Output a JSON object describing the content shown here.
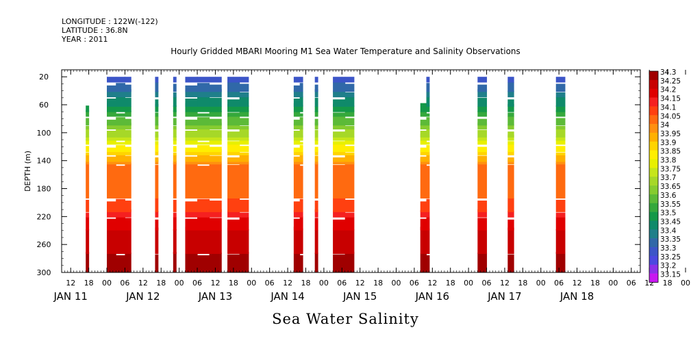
{
  "header": {
    "longitude": "LONGITUDE : 122W(-122)",
    "latitude": "LATITUDE : 36.8N",
    "year": "YEAR : 2011"
  },
  "chart_data": {
    "type": "heatmap",
    "title": "Hourly Gridded MBARI Mooring M1 Sea Water Temperature and Salinity Observations",
    "subtitle": "Sea Water Salinity",
    "ylabel": "DEPTH (m)",
    "ylim": [
      300,
      10
    ],
    "y_ticks": [
      20,
      60,
      100,
      140,
      180,
      220,
      260,
      300
    ],
    "x_ticks_hours": [
      "12",
      "18",
      "00",
      "06",
      "12",
      "18",
      "00",
      "06",
      "12",
      "18",
      "00",
      "06",
      "12",
      "18",
      "00",
      "06",
      "12",
      "18",
      "00",
      "06",
      "12",
      "18",
      "00",
      "06",
      "12",
      "18",
      "00",
      "06",
      "12",
      "18",
      "00",
      "06",
      "12",
      "18",
      "00",
      "06",
      "12"
    ],
    "date_labels": [
      "JAN 11",
      "JAN 12",
      "JAN 13",
      "JAN 14",
      "JAN 15",
      "JAN 16",
      "JAN 17",
      "JAN 18"
    ],
    "x_units": "hours since JAN 11 00:00",
    "xlim": [
      9,
      201
    ],
    "colorbar": {
      "levels": [
        "34.3",
        "34.25",
        "34.2",
        "34.15",
        "34.1",
        "34.05",
        "34",
        "33.95",
        "33.9",
        "33.85",
        "33.8",
        "33.75",
        "33.7",
        "33.65",
        "33.6",
        "33.55",
        "33.5",
        "33.45",
        "33.4",
        "33.35",
        "33.3",
        "33.25",
        "33.2",
        "33.15"
      ],
      "colors": [
        "#a00000",
        "#c80000",
        "#e00000",
        "#f52020",
        "#ff4010",
        "#ff6a10",
        "#ff9010",
        "#ffb000",
        "#ffd400",
        "#ffee00",
        "#e8f000",
        "#c6e61a",
        "#a6d828",
        "#86cc30",
        "#5cba38",
        "#35a83c",
        "#149848",
        "#0f8a6a",
        "#1f7f8a",
        "#3068a8",
        "#3c55c8",
        "#4c48e0",
        "#8c30e8",
        "#c818f0"
      ]
    },
    "data_columns": [
      {
        "start": 17,
        "end": 18,
        "top": 60
      },
      {
        "start": 24,
        "end": 27,
        "top": 20
      },
      {
        "start": 27,
        "end": 30,
        "top": 20
      },
      {
        "start": 30,
        "end": 32,
        "top": 20
      },
      {
        "start": 40,
        "end": 41,
        "top": 20
      },
      {
        "start": 46,
        "end": 47,
        "top": 20
      },
      {
        "start": 50,
        "end": 54,
        "top": 20
      },
      {
        "start": 54,
        "end": 58,
        "top": 20
      },
      {
        "start": 58,
        "end": 62,
        "top": 20
      },
      {
        "start": 64,
        "end": 68,
        "top": 20
      },
      {
        "start": 68,
        "end": 71,
        "top": 20
      },
      {
        "start": 86,
        "end": 88,
        "top": 20
      },
      {
        "start": 88,
        "end": 89,
        "top": 20
      },
      {
        "start": 93,
        "end": 94,
        "top": 20
      },
      {
        "start": 99,
        "end": 103,
        "top": 20
      },
      {
        "start": 103,
        "end": 106,
        "top": 20
      },
      {
        "start": 128,
        "end": 130,
        "top": 60
      },
      {
        "start": 130,
        "end": 131,
        "top": 20
      },
      {
        "start": 147,
        "end": 150,
        "top": 20
      },
      {
        "start": 157,
        "end": 159,
        "top": 20
      },
      {
        "start": 173,
        "end": 176,
        "top": 20
      }
    ],
    "level_depths": [
      {
        "value": 34.3,
        "from": 300,
        "to": 273
      },
      {
        "value": 34.25,
        "from": 273,
        "to": 237
      },
      {
        "value": 34.2,
        "from": 237,
        "to": 222
      },
      {
        "value": 34.15,
        "from": 222,
        "to": 212
      },
      {
        "value": 34.1,
        "from": 212,
        "to": 196
      },
      {
        "value": 34.05,
        "from": 196,
        "to": 145
      },
      {
        "value": 34.0,
        "from": 145,
        "to": 139
      },
      {
        "value": 33.95,
        "from": 139,
        "to": 133
      },
      {
        "value": 33.9,
        "from": 133,
        "to": 126
      },
      {
        "value": 33.85,
        "from": 126,
        "to": 119
      },
      {
        "value": 33.8,
        "from": 119,
        "to": 111
      },
      {
        "value": 33.75,
        "from": 111,
        "to": 104
      },
      {
        "value": 33.7,
        "from": 104,
        "to": 96
      },
      {
        "value": 33.65,
        "from": 96,
        "to": 88
      },
      {
        "value": 33.6,
        "from": 88,
        "to": 79
      },
      {
        "value": 33.55,
        "from": 79,
        "to": 70
      },
      {
        "value": 33.5,
        "from": 70,
        "to": 60
      },
      {
        "value": 33.45,
        "from": 60,
        "to": 50
      },
      {
        "value": 33.4,
        "from": 50,
        "to": 40
      },
      {
        "value": 33.35,
        "from": 40,
        "to": 30
      },
      {
        "value": 33.3,
        "from": 30,
        "to": 20
      }
    ]
  }
}
